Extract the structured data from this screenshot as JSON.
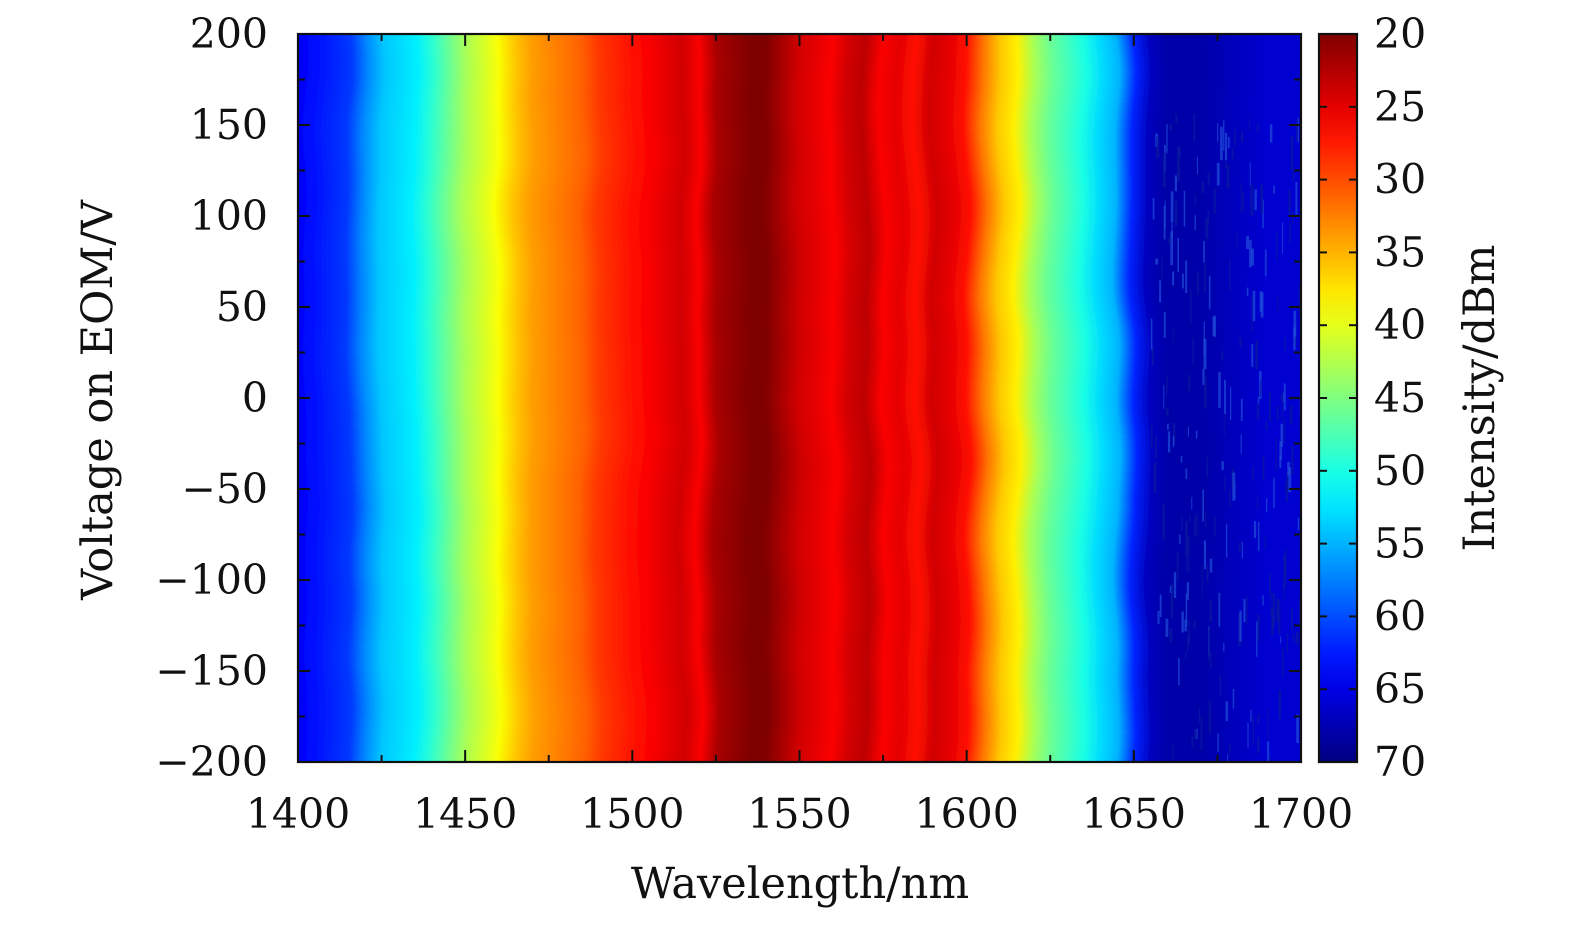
{
  "chart_data": {
    "type": "heatmap",
    "xlabel": "Wavelength/nm",
    "ylabel": "Voltage on EOM/V",
    "colorbar_label": "Intensity/dBm",
    "xlim": [
      1400,
      1700
    ],
    "ylim": [
      -200,
      200
    ],
    "x_ticks": [
      1400,
      1450,
      1500,
      1550,
      1600,
      1650,
      1700
    ],
    "x_tick_labels": [
      "1400",
      "1450",
      "1500",
      "1550",
      "1600",
      "1650",
      "1700"
    ],
    "y_ticks": [
      -200,
      -150,
      -100,
      -50,
      0,
      50,
      100,
      150,
      200
    ],
    "y_tick_labels": [
      "−200",
      "−150",
      "−100",
      "−50",
      "0",
      "50",
      "100",
      "150",
      "200"
    ],
    "colorbar_range": [
      20,
      70
    ],
    "colorbar_reversed": true,
    "colorbar_ticks": [
      20,
      25,
      30,
      35,
      40,
      45,
      50,
      55,
      60,
      65,
      70
    ],
    "colorbar_tick_labels": [
      "20",
      "25",
      "30",
      "35",
      "40",
      "45",
      "50",
      "55",
      "60",
      "65",
      "70"
    ],
    "colormap": "jet",
    "intensity_profile": {
      "wavelength_nm": [
        1400,
        1405,
        1410,
        1415,
        1420,
        1425,
        1430,
        1435,
        1440,
        1445,
        1450,
        1455,
        1460,
        1465,
        1470,
        1475,
        1480,
        1485,
        1490,
        1495,
        1500,
        1505,
        1510,
        1515,
        1520,
        1525,
        1530,
        1535,
        1540,
        1545,
        1550,
        1555,
        1560,
        1565,
        1570,
        1575,
        1580,
        1585,
        1590,
        1595,
        1600,
        1605,
        1610,
        1615,
        1620,
        1625,
        1630,
        1635,
        1640,
        1645,
        1650,
        1655,
        1660,
        1670,
        1680,
        1690,
        1700
      ],
      "intensity_dbm": [
        64,
        63,
        62,
        61,
        57,
        54,
        53,
        52,
        49,
        46,
        43,
        41,
        39,
        36,
        34,
        33,
        32,
        31,
        29,
        28,
        27,
        26,
        25,
        24,
        26,
        22,
        21,
        20,
        20,
        22,
        24,
        25,
        26,
        24,
        23,
        26,
        25,
        27,
        24,
        25,
        27,
        32,
        36,
        38,
        43,
        46,
        48,
        50,
        53,
        55,
        62,
        67,
        68,
        68,
        67,
        66,
        66
      ]
    },
    "voltage_modulation": "ripple fringes shift periodically with voltage, period about 100 V"
  }
}
